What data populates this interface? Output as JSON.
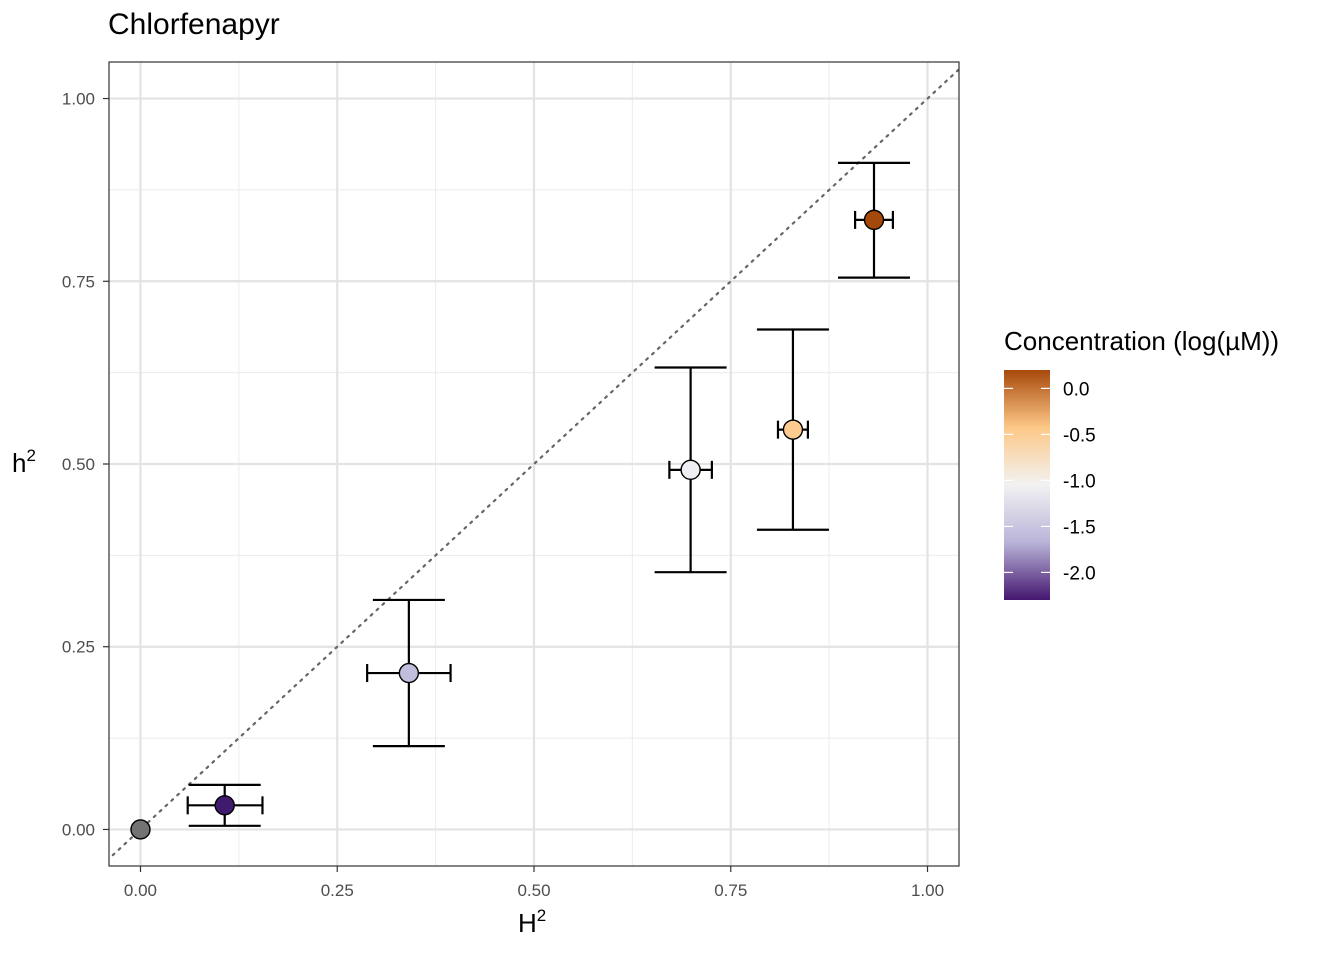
{
  "chart_data": {
    "type": "scatter",
    "title": "Chlorfenapyr",
    "xlabel": "H",
    "xlabel_superscript": "2",
    "ylabel": "h",
    "ylabel_superscript": "2",
    "xlim": [
      -0.04,
      1.04
    ],
    "ylim": [
      -0.05,
      1.05
    ],
    "x_ticks": [
      0.0,
      0.25,
      0.5,
      0.75,
      1.0
    ],
    "x_tick_labels": [
      "0.00",
      "0.25",
      "0.50",
      "0.75",
      "1.00"
    ],
    "y_ticks": [
      0.0,
      0.25,
      0.5,
      0.75,
      1.0
    ],
    "y_tick_labels": [
      "0.00",
      "0.25",
      "0.50",
      "0.75",
      "1.00"
    ],
    "grid": true,
    "reference_line": {
      "type": "identity",
      "style": "dotted",
      "color": "#666666"
    },
    "points": [
      {
        "x": 0.0,
        "y": 0.0,
        "x_err": null,
        "y_err": null,
        "color": "#737373"
      },
      {
        "x": 0.107,
        "y": 0.033,
        "x_low": 0.06,
        "x_high": 0.155,
        "y_low": 0.005,
        "y_high": 0.061,
        "color": "#3f1a6d"
      },
      {
        "x": 0.341,
        "y": 0.214,
        "x_low": 0.288,
        "x_high": 0.394,
        "y_low": 0.114,
        "y_high": 0.314,
        "color": "#c1bedd"
      },
      {
        "x": 0.699,
        "y": 0.492,
        "x_low": 0.672,
        "x_high": 0.726,
        "y_low": 0.352,
        "y_high": 0.632,
        "color": "#eeeef3"
      },
      {
        "x": 0.829,
        "y": 0.547,
        "x_low": 0.81,
        "x_high": 0.848,
        "y_low": 0.41,
        "y_high": 0.684,
        "color": "#ffcc8f"
      },
      {
        "x": 0.932,
        "y": 0.834,
        "x_low": 0.908,
        "x_high": 0.956,
        "y_low": 0.755,
        "y_high": 0.912,
        "color": "#a5480c"
      }
    ],
    "legend": {
      "title": "Concentration (log(µM))",
      "placement": "right",
      "type": "colorbar",
      "range": [
        -2.3,
        0.2
      ],
      "ticks": [
        0.0,
        -0.5,
        -1.0,
        -1.5,
        -2.0
      ],
      "tick_labels": [
        "0.0",
        "-0.5",
        "-1.0",
        "-1.5",
        "-2.0"
      ],
      "colors": [
        "#45166f",
        "#b9b3d8",
        "#f2f2f2",
        "#fdc887",
        "#a6490c"
      ]
    }
  }
}
